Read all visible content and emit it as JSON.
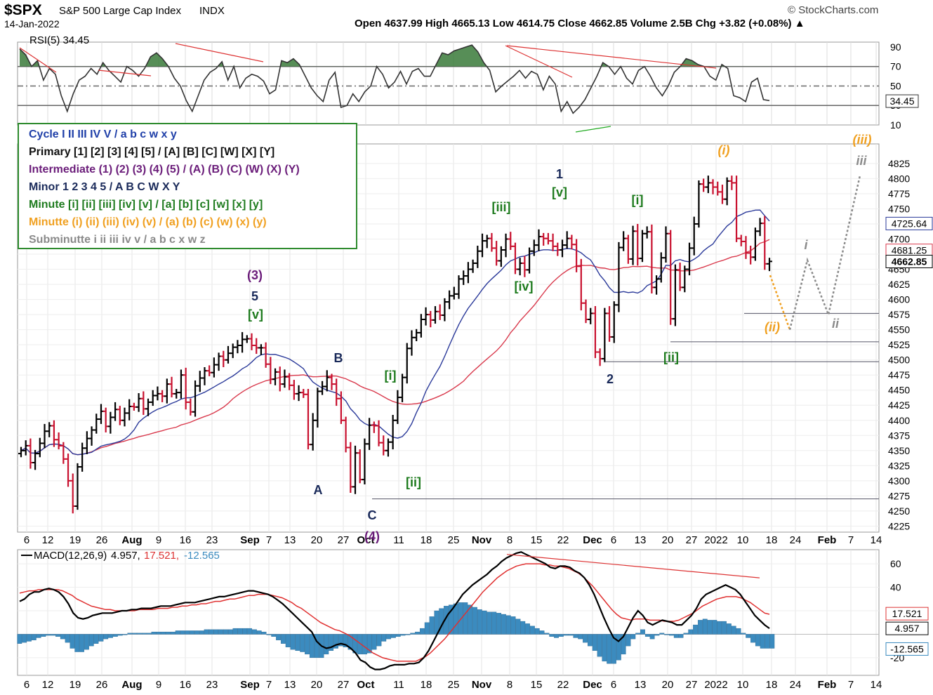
{
  "header": {
    "symbol": "$SPX",
    "name": "S&P 500 Large Cap Index",
    "exchange": "INDX",
    "date": "14-Jan-2022",
    "source": "© StockCharts.com",
    "ohlc_label": "Open 4637.99  High 4665.13  Low 4614.75  Close 4662.85  Volume 2.5B  Chg +3.82 (+0.08%) ▲"
  },
  "legend": [
    {
      "text": "Cycle I II III IV V / a b c w x y",
      "color": "#1f3fa8"
    },
    {
      "text": "Primary [1] [2] [3] [4] [5] / [A] [B] [C] [W] [X] [Y]",
      "color": "#111111"
    },
    {
      "text": "Intermediate (1) (2) (3) (4) (5) / (A) (B) (C) (W) (X) (Y)",
      "color": "#6b1d7a"
    },
    {
      "text": "Minor 1 2 3 4 5 / A B C W X Y",
      "color": "#1a2a5a"
    },
    {
      "text": "Minute [i] [ii] [iii] [iv] [v] / [a] [b] [c] [w] [x] [y]",
      "color": "#1e7b1e"
    },
    {
      "text": "Minutte (i) (ii) (iii) (iv) (v) / (a) (b) (c) (w) (x) (y)",
      "color": "#f0a020"
    },
    {
      "text": "Subminutte i ii iii iv v / a b c x w z",
      "color": "#8a8a8a"
    }
  ],
  "colors": {
    "up": "#000000",
    "down": "#c8102e",
    "ma_fast": "#2b3a9a",
    "ma_slow": "#d9394c",
    "rsi": "#333333",
    "rsi_fill": "#3a7a3a",
    "macd": "#000000",
    "signal": "#e03030",
    "hist": "#3b8bbf",
    "minute": "#1e7b1e",
    "minutte": "#f0a020",
    "subminutte": "#8a8a8a",
    "minor": "#1a2a5a",
    "intermediate": "#6b1d7a"
  },
  "chart_data": [
    {
      "type": "line",
      "panel": "rsi",
      "label": "RSI(5) 34.45",
      "current_value_label": "34.45",
      "yticks": [
        10,
        30,
        50,
        70,
        90
      ],
      "ylim": [
        10,
        95
      ],
      "levels": [
        30,
        50,
        70
      ],
      "values": [
        88,
        82,
        70,
        76,
        56,
        68,
        62,
        40,
        24,
        42,
        56,
        60,
        68,
        62,
        74,
        66,
        60,
        54,
        70,
        66,
        60,
        68,
        80,
        84,
        78,
        70,
        58,
        50,
        35,
        24,
        40,
        56,
        64,
        68,
        75,
        56,
        70,
        48,
        58,
        62,
        60,
        55,
        42,
        46,
        76,
        74,
        78,
        72,
        60,
        48,
        40,
        34,
        56,
        64,
        28,
        30,
        42,
        34,
        44,
        50,
        70,
        62,
        48,
        54,
        65,
        52,
        65,
        68,
        60,
        60,
        72,
        84,
        82,
        86,
        88,
        90,
        92,
        85,
        74,
        66,
        44,
        50,
        55,
        60,
        66,
        58,
        65,
        62,
        46,
        60,
        52,
        24,
        34,
        22,
        28,
        36,
        48,
        60,
        74,
        70,
        62,
        70,
        58,
        52,
        66,
        70,
        60,
        48,
        40,
        50,
        64,
        70,
        78,
        76,
        72,
        70,
        60,
        56,
        72,
        68,
        40,
        38,
        34,
        54,
        58,
        36,
        35
      ],
      "xtick_labels": [
        "6",
        "12",
        "19",
        "26",
        "Aug",
        "9",
        "16",
        "23",
        "Sep",
        "7",
        "13",
        "20",
        "27",
        "Oct",
        "11",
        "18",
        "25",
        "Nov",
        "8",
        "15",
        "22",
        "Dec",
        "6",
        "13",
        "20",
        "27",
        "2022",
        "10",
        "18",
        "24",
        "Feb",
        "7",
        "14"
      ]
    },
    {
      "type": "candlestick",
      "panel": "price",
      "yticks": [
        4225,
        4250,
        4275,
        4300,
        4325,
        4350,
        4375,
        4400,
        4425,
        4450,
        4475,
        4500,
        4525,
        4550,
        4575,
        4600,
        4625,
        4650,
        4675,
        4700,
        4725,
        4750,
        4775,
        4800,
        4825
      ],
      "ylim": [
        4215,
        4840
      ],
      "close_path": [
        4350,
        4358,
        4330,
        4345,
        4362,
        4382,
        4391,
        4368,
        4358,
        4336,
        4300,
        4258,
        4323,
        4354,
        4370,
        4384,
        4402,
        4415,
        4390,
        4405,
        4418,
        4400,
        4412,
        4423,
        4422,
        4436,
        4419,
        4430,
        4441,
        4444,
        4440,
        4460,
        4444,
        4446,
        4475,
        4430,
        4414,
        4457,
        4470,
        4482,
        4479,
        4492,
        4506,
        4500,
        4511,
        4521,
        4524,
        4534,
        4535,
        4524,
        4520,
        4520,
        4493,
        4468,
        4480,
        4460,
        4472,
        4458,
        4444,
        4446,
        4443,
        4360,
        4400,
        4448,
        4456,
        4471,
        4460,
        4436,
        4400,
        4355,
        4290,
        4346,
        4302,
        4361,
        4392,
        4391,
        4363,
        4350,
        4364,
        4400,
        4438,
        4471,
        4519,
        4537,
        4545,
        4567,
        4575,
        4566,
        4580,
        4574,
        4596,
        4606,
        4609,
        4634,
        4639,
        4650,
        4660,
        4680,
        4697,
        4701,
        4685,
        4664,
        4682,
        4700,
        4688,
        4650,
        4660,
        4649,
        4680,
        4690,
        4704,
        4701,
        4697,
        4688,
        4682,
        4690,
        4701,
        4691,
        4655,
        4594,
        4567,
        4577,
        4513,
        4502,
        4577,
        4538,
        4591,
        4686,
        4701,
        4667,
        4713,
        4668,
        4709,
        4712,
        4620,
        4634,
        4669,
        4709,
        4568,
        4649,
        4620,
        4650,
        4685,
        4725,
        4791,
        4786,
        4793,
        4786,
        4778,
        4766,
        4796,
        4793,
        4701,
        4696,
        4677,
        4670,
        4713,
        4726,
        4659,
        4663
      ],
      "labels": [
        {
          "text": "(3)",
          "wave": "intermediate"
        },
        {
          "text": "5",
          "wave": "minor"
        },
        {
          "text": "[v]",
          "wave": "minute"
        },
        {
          "text": "A",
          "wave": "minor"
        },
        {
          "text": "B",
          "wave": "minor"
        },
        {
          "text": "C",
          "wave": "minor"
        },
        {
          "text": "(4)",
          "wave": "intermediate"
        },
        {
          "text": "[i]",
          "wave": "minute"
        },
        {
          "text": "[ii]",
          "wave": "minute"
        },
        {
          "text": "[iii]",
          "wave": "minute"
        },
        {
          "text": "[iv]",
          "wave": "minute"
        },
        {
          "text": "1",
          "wave": "minor"
        },
        {
          "text": "[v]",
          "wave": "minute"
        },
        {
          "text": "2",
          "wave": "minor"
        },
        {
          "text": "[i]",
          "wave": "minute"
        },
        {
          "text": "[ii]",
          "wave": "minute"
        },
        {
          "text": "(i)",
          "wave": "minutte"
        },
        {
          "text": "(ii)",
          "wave": "minutte"
        },
        {
          "text": "(iii)",
          "wave": "minutte"
        },
        {
          "text": "i",
          "wave": "subminutte"
        },
        {
          "text": "ii",
          "wave": "subminutte"
        },
        {
          "text": "iii",
          "wave": "subminutte"
        }
      ],
      "price_tags": [
        {
          "text": "4725.64",
          "value": 4725.64,
          "color": "#2b3a9a"
        },
        {
          "text": "4681.25",
          "value": 4681.25,
          "color": "#d9394c"
        },
        {
          "text": "4662.85",
          "value": 4662.85,
          "color": "#000000"
        }
      ],
      "xtick_labels": [
        "6",
        "12",
        "19",
        "26",
        "Aug",
        "9",
        "16",
        "23",
        "Sep",
        "7",
        "13",
        "20",
        "27",
        "Oct",
        "11",
        "18",
        "25",
        "Nov",
        "8",
        "15",
        "22",
        "Dec",
        "6",
        "13",
        "20",
        "27",
        "2022",
        "10",
        "18",
        "24",
        "Feb",
        "7",
        "14"
      ]
    },
    {
      "type": "line",
      "panel": "macd",
      "label_title": "MACD(12,26,9)",
      "label_macd": "4.957,",
      "label_signal": "17.521,",
      "label_hist": "-12.565",
      "tag_signal": "17.521",
      "tag_macd": "4.957",
      "tag_hist": "-12.565",
      "yticks": [
        -20,
        20,
        40,
        60
      ],
      "ylim": [
        -35,
        72
      ],
      "macd": [
        28,
        30,
        34,
        36,
        36,
        38,
        39,
        38,
        36,
        32,
        26,
        18,
        14,
        13,
        14,
        16,
        17,
        18,
        18,
        18,
        19,
        20,
        20,
        21,
        21,
        22,
        22,
        22,
        23,
        24,
        24,
        24,
        25,
        26,
        27,
        27,
        27,
        28,
        29,
        30,
        31,
        32,
        32,
        33,
        34,
        35,
        36,
        37,
        37,
        36,
        35,
        34,
        32,
        29,
        26,
        22,
        18,
        14,
        10,
        6,
        2,
        -6,
        -10,
        -12,
        -11,
        -9,
        -8,
        -9,
        -12,
        -16,
        -22,
        -24,
        -28,
        -30,
        -30,
        -29,
        -27,
        -26,
        -26,
        -26,
        -25,
        -25,
        -24,
        -20,
        -14,
        -6,
        2,
        10,
        17,
        22,
        28,
        34,
        38,
        42,
        45,
        48,
        51,
        55,
        58,
        62,
        65,
        67,
        69,
        70,
        68,
        66,
        64,
        62,
        60,
        57,
        56,
        58,
        58,
        57,
        54,
        52,
        48,
        42,
        34,
        24,
        14,
        5,
        -3,
        -6,
        -2,
        6,
        14,
        20,
        16,
        10,
        8,
        10,
        12,
        11,
        10,
        8,
        8,
        12,
        16,
        22,
        30,
        34,
        36,
        38,
        40,
        42,
        40,
        38,
        34,
        28,
        22,
        16,
        12,
        8,
        5
      ],
      "signal": [
        35,
        36,
        37,
        37,
        38,
        38,
        38,
        38,
        38,
        37,
        35,
        33,
        30,
        28,
        26,
        24,
        23,
        22,
        21,
        21,
        20,
        20,
        20,
        20,
        20,
        21,
        21,
        21,
        21,
        22,
        22,
        22,
        23,
        23,
        24,
        24,
        25,
        25,
        26,
        26,
        27,
        28,
        28,
        29,
        30,
        30,
        31,
        32,
        33,
        33,
        34,
        34,
        34,
        33,
        32,
        31,
        29,
        27,
        24,
        22,
        19,
        16,
        13,
        10,
        8,
        6,
        4,
        3,
        1,
        -1,
        -4,
        -7,
        -10,
        -13,
        -16,
        -18,
        -20,
        -21,
        -22,
        -23,
        -23,
        -23,
        -23,
        -23,
        -21,
        -19,
        -16,
        -12,
        -8,
        -4,
        1,
        6,
        11,
        16,
        21,
        26,
        31,
        36,
        40,
        44,
        48,
        51,
        54,
        56,
        58,
        59,
        60,
        60,
        60,
        60,
        59,
        59,
        58,
        58,
        57,
        56,
        54,
        52,
        49,
        45,
        41,
        36,
        31,
        26,
        21,
        17,
        14,
        13,
        12,
        13,
        13,
        13,
        12,
        12,
        12,
        11,
        11,
        11,
        12,
        14,
        16,
        18,
        21,
        24,
        26,
        28,
        30,
        31,
        32,
        32,
        32,
        31,
        29,
        27,
        24,
        21,
        18,
        17
      ],
      "histogram": [
        -8,
        -7,
        -6,
        -5,
        -3,
        -2,
        -1,
        -1,
        -2,
        -4,
        -7,
        -12,
        -15,
        -15,
        -13,
        -10,
        -8,
        -6,
        -4,
        -3,
        -2,
        -1,
        0,
        1,
        1,
        1,
        1,
        1,
        2,
        2,
        2,
        2,
        2,
        3,
        3,
        3,
        3,
        3,
        3,
        4,
        4,
        4,
        4,
        4,
        4,
        5,
        5,
        5,
        5,
        4,
        3,
        2,
        0,
        -2,
        -5,
        -8,
        -11,
        -13,
        -14,
        -15,
        -17,
        -20,
        -20,
        -20,
        -17,
        -14,
        -12,
        -10,
        -11,
        -13,
        -16,
        -17,
        -17,
        -16,
        -13,
        -10,
        -6,
        -4,
        -3,
        -2,
        -1,
        0,
        1,
        2,
        5,
        10,
        15,
        20,
        22,
        24,
        25,
        26,
        27,
        27,
        25,
        23,
        21,
        20,
        19,
        19,
        18,
        17,
        16,
        15,
        13,
        11,
        9,
        7,
        5,
        3,
        1,
        -2,
        -3,
        -2,
        -1,
        -1,
        -3,
        -4,
        -7,
        -10,
        -14,
        -19,
        -23,
        -25,
        -25,
        -22,
        -17,
        -10,
        -4,
        1,
        4,
        -2,
        -4,
        -1,
        1,
        0,
        -1,
        -3,
        -3,
        1,
        4,
        8,
        12,
        13,
        12,
        12,
        11,
        11,
        9,
        7,
        5,
        1,
        -3,
        -7,
        -10,
        -12,
        -12,
        -12
      ],
      "xtick_labels": [
        "6",
        "12",
        "19",
        "26",
        "Aug",
        "9",
        "16",
        "23",
        "Sep",
        "7",
        "13",
        "20",
        "27",
        "Oct",
        "11",
        "18",
        "25",
        "Nov",
        "8",
        "15",
        "22",
        "Dec",
        "6",
        "13",
        "20",
        "27",
        "2022",
        "10",
        "18",
        "24",
        "Feb",
        "7",
        "14"
      ]
    }
  ]
}
